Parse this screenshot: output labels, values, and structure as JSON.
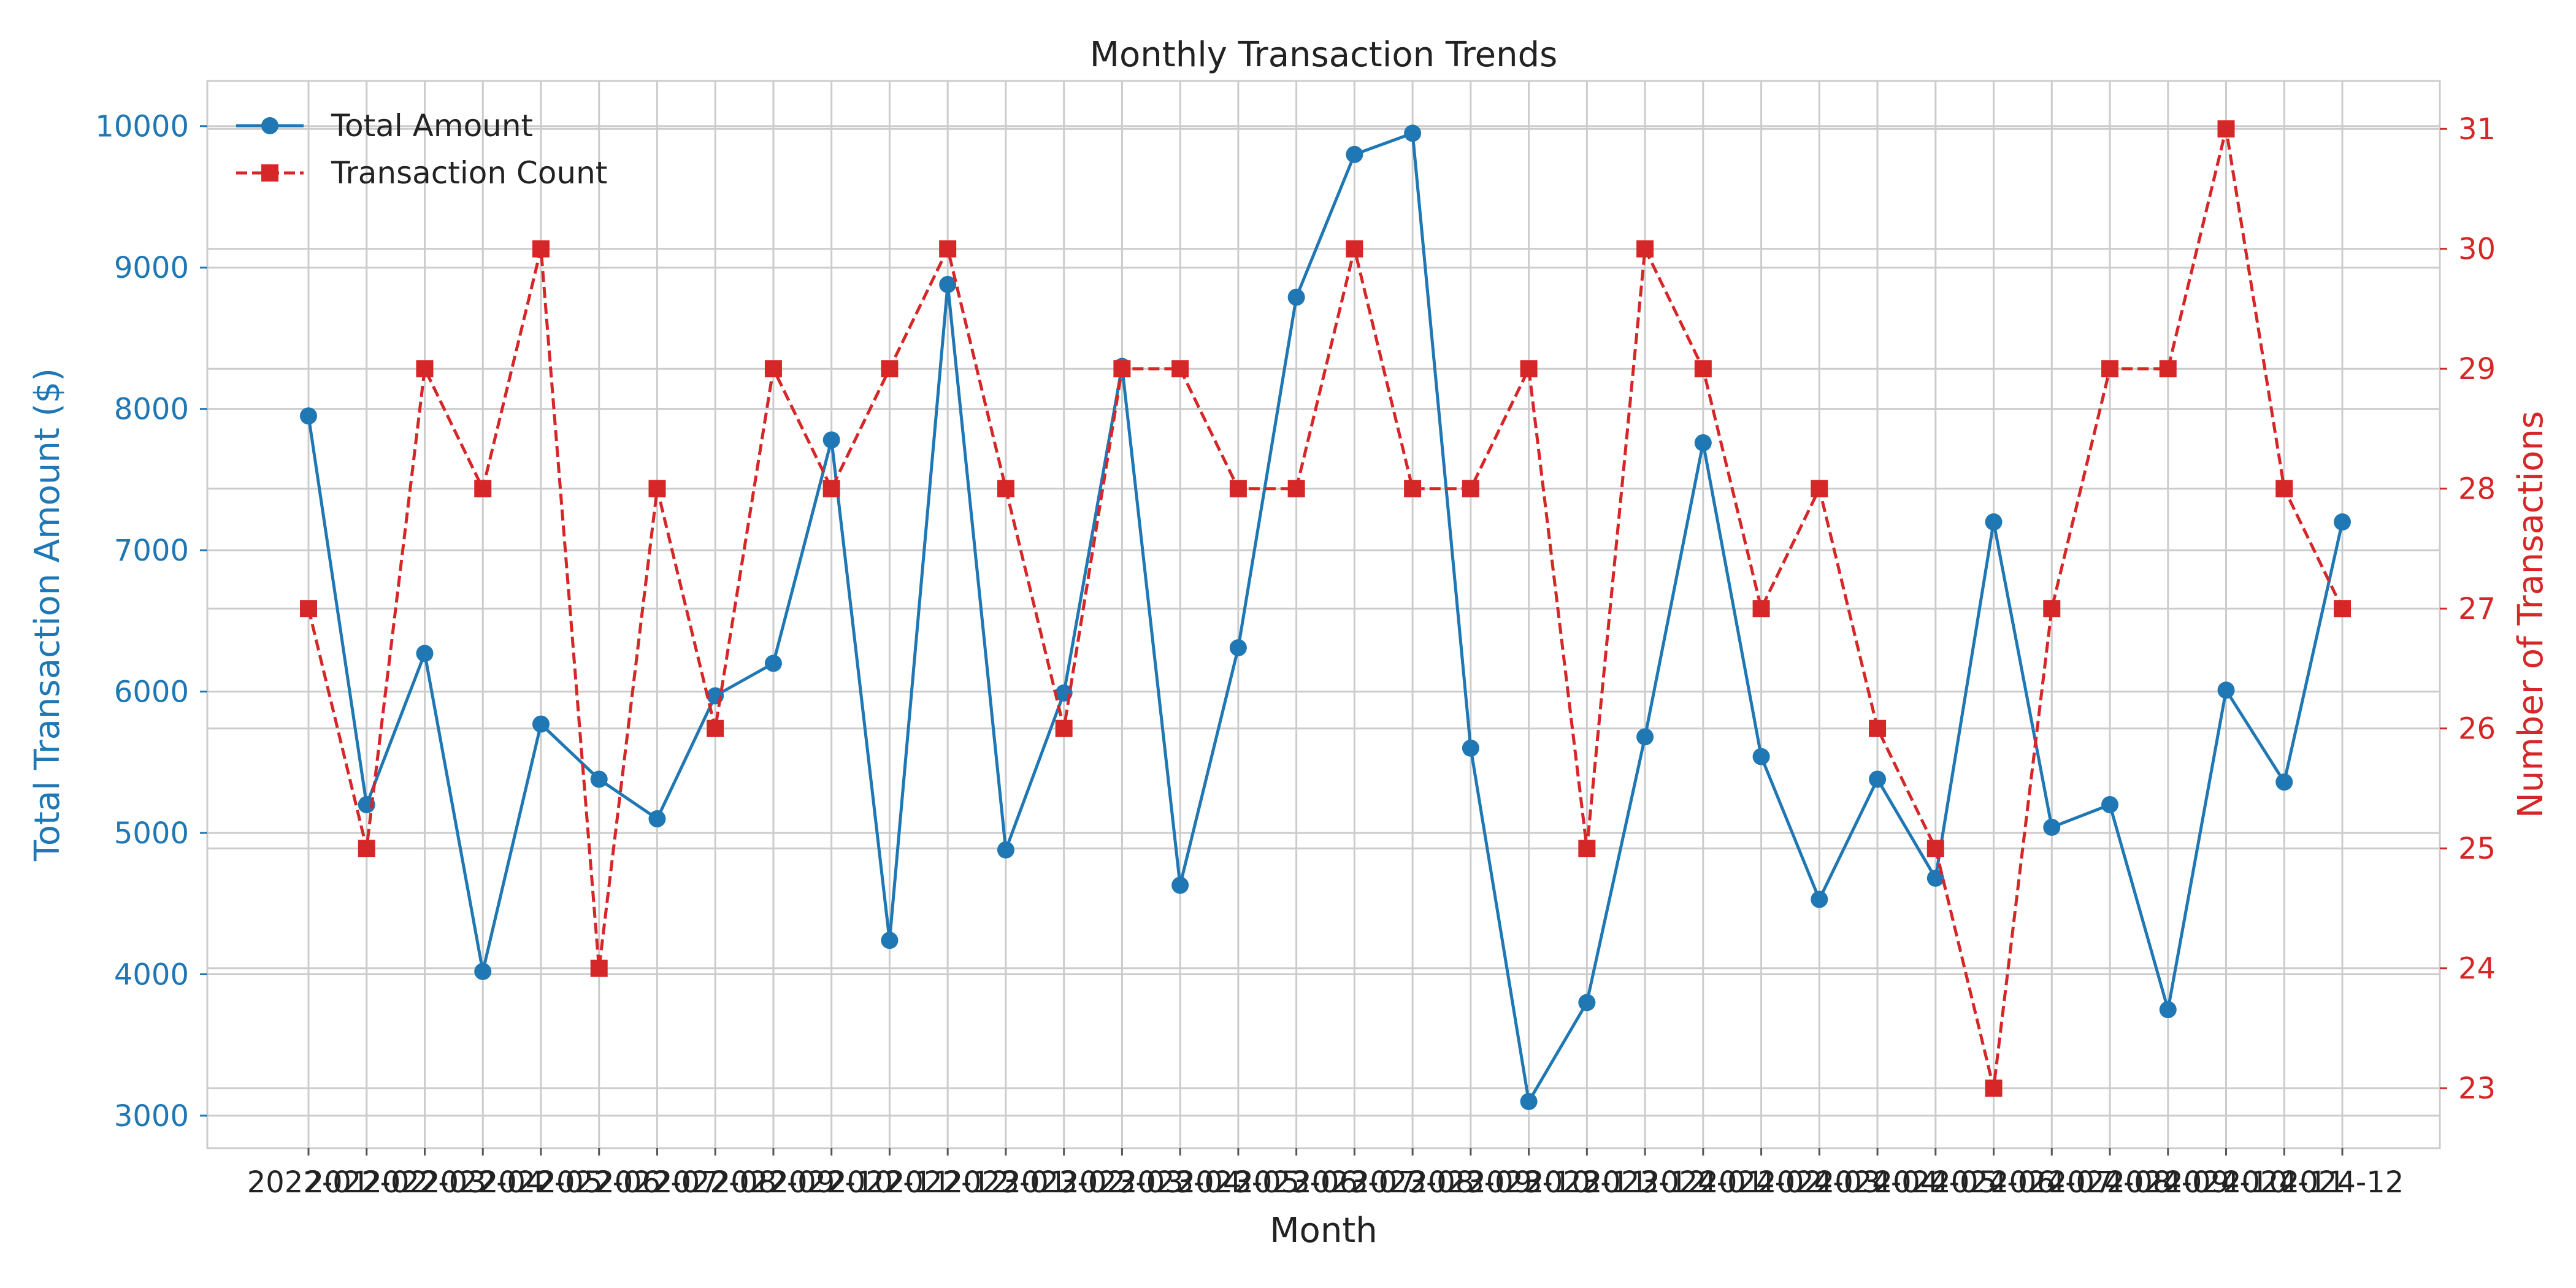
{
  "chart_data": {
    "type": "line",
    "title": "Monthly Transaction Trends",
    "xlabel": "Month",
    "ylabel_left": "Total Transaction Amount ($)",
    "ylabel_right": "Number of Transactions",
    "categories": [
      "2022-01",
      "2022-02",
      "2022-03",
      "2022-04",
      "2022-05",
      "2022-06",
      "2022-07",
      "2022-08",
      "2022-09",
      "2022-10",
      "2022-11",
      "2022-12",
      "2023-01",
      "2023-02",
      "2023-03",
      "2023-04",
      "2023-05",
      "2023-06",
      "2023-07",
      "2023-08",
      "2023-09",
      "2023-10",
      "2023-11",
      "2023-12",
      "2024-01",
      "2024-02",
      "2024-03",
      "2024-04",
      "2024-05",
      "2024-06",
      "2024-07",
      "2024-08",
      "2024-09",
      "2024-10",
      "2024-11",
      "2024-12"
    ],
    "series": [
      {
        "name": "Total Amount",
        "axis": "left",
        "color": "#1f77b4",
        "line_style": "solid",
        "marker": "circle",
        "values": [
          7950,
          5200,
          6270,
          4020,
          5770,
          5380,
          5100,
          5970,
          6200,
          7780,
          4240,
          8880,
          4880,
          5990,
          8300,
          4630,
          6310,
          8790,
          9800,
          9950,
          5600,
          3100,
          3800,
          5680,
          7760,
          5540,
          4530,
          5380,
          4680,
          7200,
          5040,
          5200,
          3750,
          6010,
          5360,
          7200
        ]
      },
      {
        "name": "Transaction Count",
        "axis": "right",
        "color": "#d62728",
        "line_style": "dashed",
        "marker": "square",
        "values": [
          27,
          25,
          29,
          28,
          30,
          24,
          28,
          26,
          29,
          28,
          29,
          30,
          28,
          26,
          29,
          29,
          28,
          28,
          30,
          28,
          28,
          29,
          25,
          30,
          29,
          27,
          28,
          26,
          25,
          23,
          27,
          29,
          29,
          31,
          28,
          27
        ]
      }
    ],
    "ylim_left": [
      2770,
      10320
    ],
    "ylim_right": [
      22.5,
      31.4
    ],
    "yticks_left": [
      "3000",
      "4000",
      "5000",
      "6000",
      "7000",
      "8000",
      "9000",
      "10000"
    ],
    "yticks_right": [
      "23",
      "24",
      "25",
      "26",
      "27",
      "28",
      "29",
      "30",
      "31"
    ],
    "grid": true,
    "legend_position": "top-left"
  }
}
